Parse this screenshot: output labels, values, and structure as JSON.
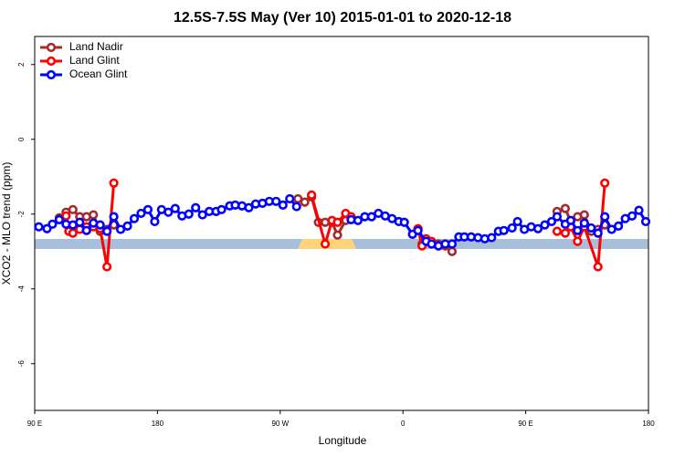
{
  "chart_data": {
    "type": "line",
    "title": "12.5S-7.5S May (Ver 10)   2015-01-01 to 2020-12-18",
    "xlabel": "Longitude",
    "ylabel": "XCO2 - MLO trend (ppm)",
    "xlim": [
      90,
      540
    ],
    "xticks": [
      {
        "value": 90,
        "label": "90 E"
      },
      180,
      {
        "value": 270,
        "label": "90 W"
      },
      {
        "value": 360,
        "label": "0"
      },
      {
        "value": 450,
        "label": "90 E"
      },
      {
        "value": 540,
        "label": "180"
      }
    ],
    "ylim": [
      -7.25,
      2.75
    ],
    "yticks": [
      -6,
      -4,
      -2,
      0,
      2
    ],
    "legend": "top-left",
    "series": [
      {
        "name": "Land Nadir",
        "color": "#a52a2a",
        "x": [
          108,
          113,
          118,
          123,
          128,
          133,
          138,
          143,
          148,
          200,
          283,
          288,
          293,
          298,
          303,
          308,
          312,
          318,
          322,
          345,
          374,
          377,
          381,
          386,
          391,
          396,
          420,
          473,
          479,
          483,
          488,
          493,
          498,
          503,
          508
        ],
        "values": [
          -2.1,
          -1.95,
          -1.88,
          -2.07,
          -2.07,
          -2.02,
          -2.46,
          -2.41,
          -2.29,
          null,
          -1.59,
          -1.68,
          -1.54,
          -2.22,
          -2.22,
          -2.22,
          -2.56,
          -2.17,
          -2.12,
          null,
          -2.8,
          -2.73,
          -2.8,
          -2.8,
          -2.85,
          -3.0,
          null,
          -1.93,
          -1.85,
          -2.2,
          -2.07,
          -2.02,
          -2.46,
          -2.41,
          -2.29
        ]
      },
      {
        "name": "Land Glint",
        "color": "#ff0000",
        "x": [
          113,
          115,
          118,
          123,
          128,
          133,
          138,
          143,
          148,
          200,
          293,
          303,
          308,
          312,
          318,
          322,
          345,
          371,
          374,
          377,
          381,
          386,
          391,
          420,
          473,
          479,
          483,
          488,
          493,
          503,
          508
        ],
        "values": [
          -2.05,
          -2.46,
          -2.51,
          -2.41,
          -2.34,
          -2.34,
          -2.39,
          -3.41,
          -1.17,
          null,
          -1.49,
          -2.8,
          -2.17,
          -2.22,
          -1.98,
          -2.07,
          null,
          -2.39,
          -2.85,
          -2.66,
          -2.73,
          -2.85,
          -2.8,
          null,
          -2.46,
          -2.51,
          -2.34,
          -2.73,
          -2.34,
          -3.41,
          -1.17
        ]
      },
      {
        "name": "Ocean Glint",
        "color": "#0000ff",
        "x": [
          93,
          99,
          103,
          108,
          113,
          118,
          123,
          128,
          133,
          138,
          143,
          148,
          153,
          158,
          163,
          168,
          173,
          178,
          183,
          188,
          193,
          198,
          203,
          208,
          213,
          218,
          223,
          227,
          233,
          237,
          242,
          247,
          252,
          257,
          262,
          267,
          272,
          277,
          282,
          300,
          322,
          327,
          332,
          337,
          342,
          347,
          352,
          357,
          361,
          367,
          371,
          377,
          381,
          386,
          391,
          396,
          401,
          405,
          410,
          415,
          420,
          425,
          430,
          434,
          440,
          444,
          449,
          454,
          459,
          464,
          469,
          473,
          479,
          483,
          488,
          493,
          498,
          503,
          508,
          513,
          518,
          523,
          528,
          533,
          538
        ],
        "values": [
          -2.34,
          -2.39,
          -2.27,
          -2.15,
          -2.27,
          -2.29,
          -2.22,
          -2.44,
          -2.24,
          -2.29,
          -2.46,
          -2.07,
          -2.41,
          -2.32,
          -2.12,
          -1.98,
          -1.88,
          -2.2,
          -1.88,
          -1.95,
          -1.85,
          -2.05,
          -2.0,
          -1.83,
          -2.02,
          -1.93,
          -1.93,
          -1.88,
          -1.78,
          -1.76,
          -1.78,
          -1.83,
          -1.73,
          -1.71,
          -1.66,
          -1.66,
          -1.76,
          -1.59,
          -1.8,
          null,
          -2.15,
          -2.17,
          -2.07,
          -2.07,
          -1.98,
          -2.05,
          -2.12,
          -2.2,
          -2.22,
          -2.54,
          -2.44,
          -2.73,
          -2.8,
          -2.85,
          -2.8,
          -2.8,
          -2.61,
          -2.61,
          -2.61,
          -2.63,
          -2.66,
          -2.63,
          -2.46,
          -2.44,
          -2.37,
          -2.2,
          -2.41,
          -2.34,
          -2.39,
          -2.29,
          -2.2,
          -2.07,
          -2.27,
          -2.17,
          -2.44,
          -2.24,
          -2.37,
          -2.51,
          -2.07,
          -2.41,
          -2.32,
          -2.12,
          -2.05,
          -1.9,
          -2.2
        ]
      }
    ]
  }
}
